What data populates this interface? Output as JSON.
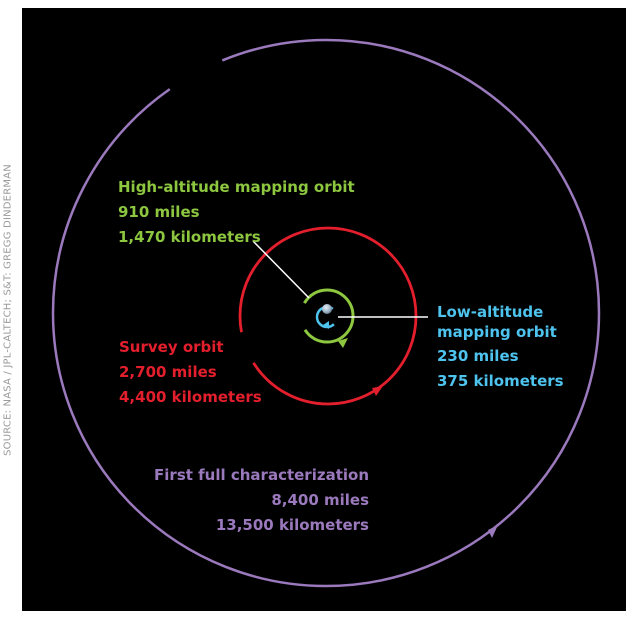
{
  "credit": "SOURCE: NASA / JPL-CALTECH; S&T: GREGG DINDERMAN",
  "colors": {
    "background": "#000000",
    "high": "#8dc63f",
    "survey": "#e41f2d",
    "low": "#4dc3ee",
    "full": "#9b79bd",
    "pointer": "#ffffff",
    "asteroid": "#9fb5c8"
  },
  "orbits": {
    "high": {
      "name": "High-altitude mapping orbit",
      "miles": "910 miles",
      "km": "1,470 kilometers"
    },
    "low": {
      "name_line1": "Low-altitude",
      "name_line2": "mapping orbit",
      "miles": "230 miles",
      "km": "375 kilometers"
    },
    "survey": {
      "name": "Survey orbit",
      "miles": "2,700 miles",
      "km": "4,400 kilometers"
    },
    "full": {
      "name": "First full characterization",
      "miles": "8,400 miles",
      "km": "13,500 kilometers"
    }
  }
}
